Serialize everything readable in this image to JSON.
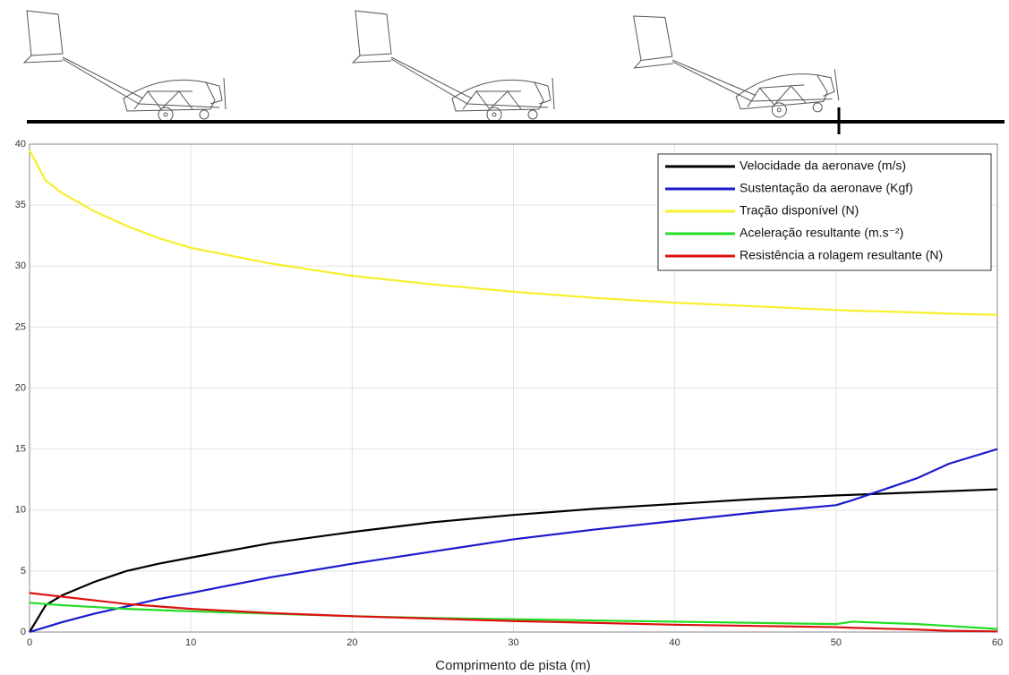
{
  "chart_data": {
    "type": "line",
    "x_label": "Comprimento de pista (m)",
    "x": [
      0,
      1,
      2,
      4,
      6,
      8,
      10,
      15,
      20,
      25,
      30,
      35,
      40,
      45,
      50,
      51,
      55,
      57,
      60
    ],
    "series": [
      {
        "name": "Velocidade da aeronave (m/s)",
        "color": "#000000",
        "values": [
          0,
          2.2,
          3.0,
          4.1,
          5.0,
          5.6,
          6.1,
          7.3,
          8.2,
          9.0,
          9.6,
          10.1,
          10.5,
          10.9,
          11.2,
          11.25,
          11.45,
          11.55,
          11.7
        ]
      },
      {
        "name": "Sustentação da aeronave (Kgf)",
        "color": "#1a1acc",
        "values": [
          0,
          0.4,
          0.8,
          1.5,
          2.1,
          2.7,
          3.2,
          4.5,
          5.6,
          6.6,
          7.6,
          8.4,
          9.1,
          9.8,
          10.4,
          10.8,
          12.6,
          13.8,
          15.0
        ]
      },
      {
        "name": "Tração disponível (N)",
        "color": "#f5f02a",
        "values": [
          39.5,
          37.0,
          36.0,
          34.5,
          33.3,
          32.3,
          31.5,
          30.2,
          29.2,
          28.5,
          27.9,
          27.4,
          27.0,
          26.7,
          26.4,
          26.35,
          26.2,
          26.1,
          26.0
        ]
      },
      {
        "name": "Aceleração resultante (m.s⁻²)",
        "color": "#22dd22",
        "values": [
          2.4,
          2.3,
          2.2,
          2.05,
          1.9,
          1.8,
          1.7,
          1.5,
          1.3,
          1.15,
          1.05,
          0.95,
          0.85,
          0.75,
          0.65,
          0.85,
          0.65,
          0.5,
          0.25
        ]
      },
      {
        "name": "Resistência a rolagem resultante (N)",
        "color": "#dd1111",
        "values": [
          3.2,
          3.05,
          2.9,
          2.6,
          2.3,
          2.1,
          1.9,
          1.55,
          1.3,
          1.1,
          0.9,
          0.75,
          0.6,
          0.5,
          0.4,
          0.35,
          0.2,
          0.1,
          0.05
        ]
      }
    ],
    "xlim": [
      0,
      60
    ],
    "xticks": [
      0,
      10,
      20,
      30,
      40,
      50,
      60
    ],
    "ylim": [
      0,
      40
    ],
    "yticks": [
      0,
      5,
      10,
      15,
      20,
      25,
      30,
      35,
      40
    ],
    "grid": true,
    "legend": "upper right"
  }
}
